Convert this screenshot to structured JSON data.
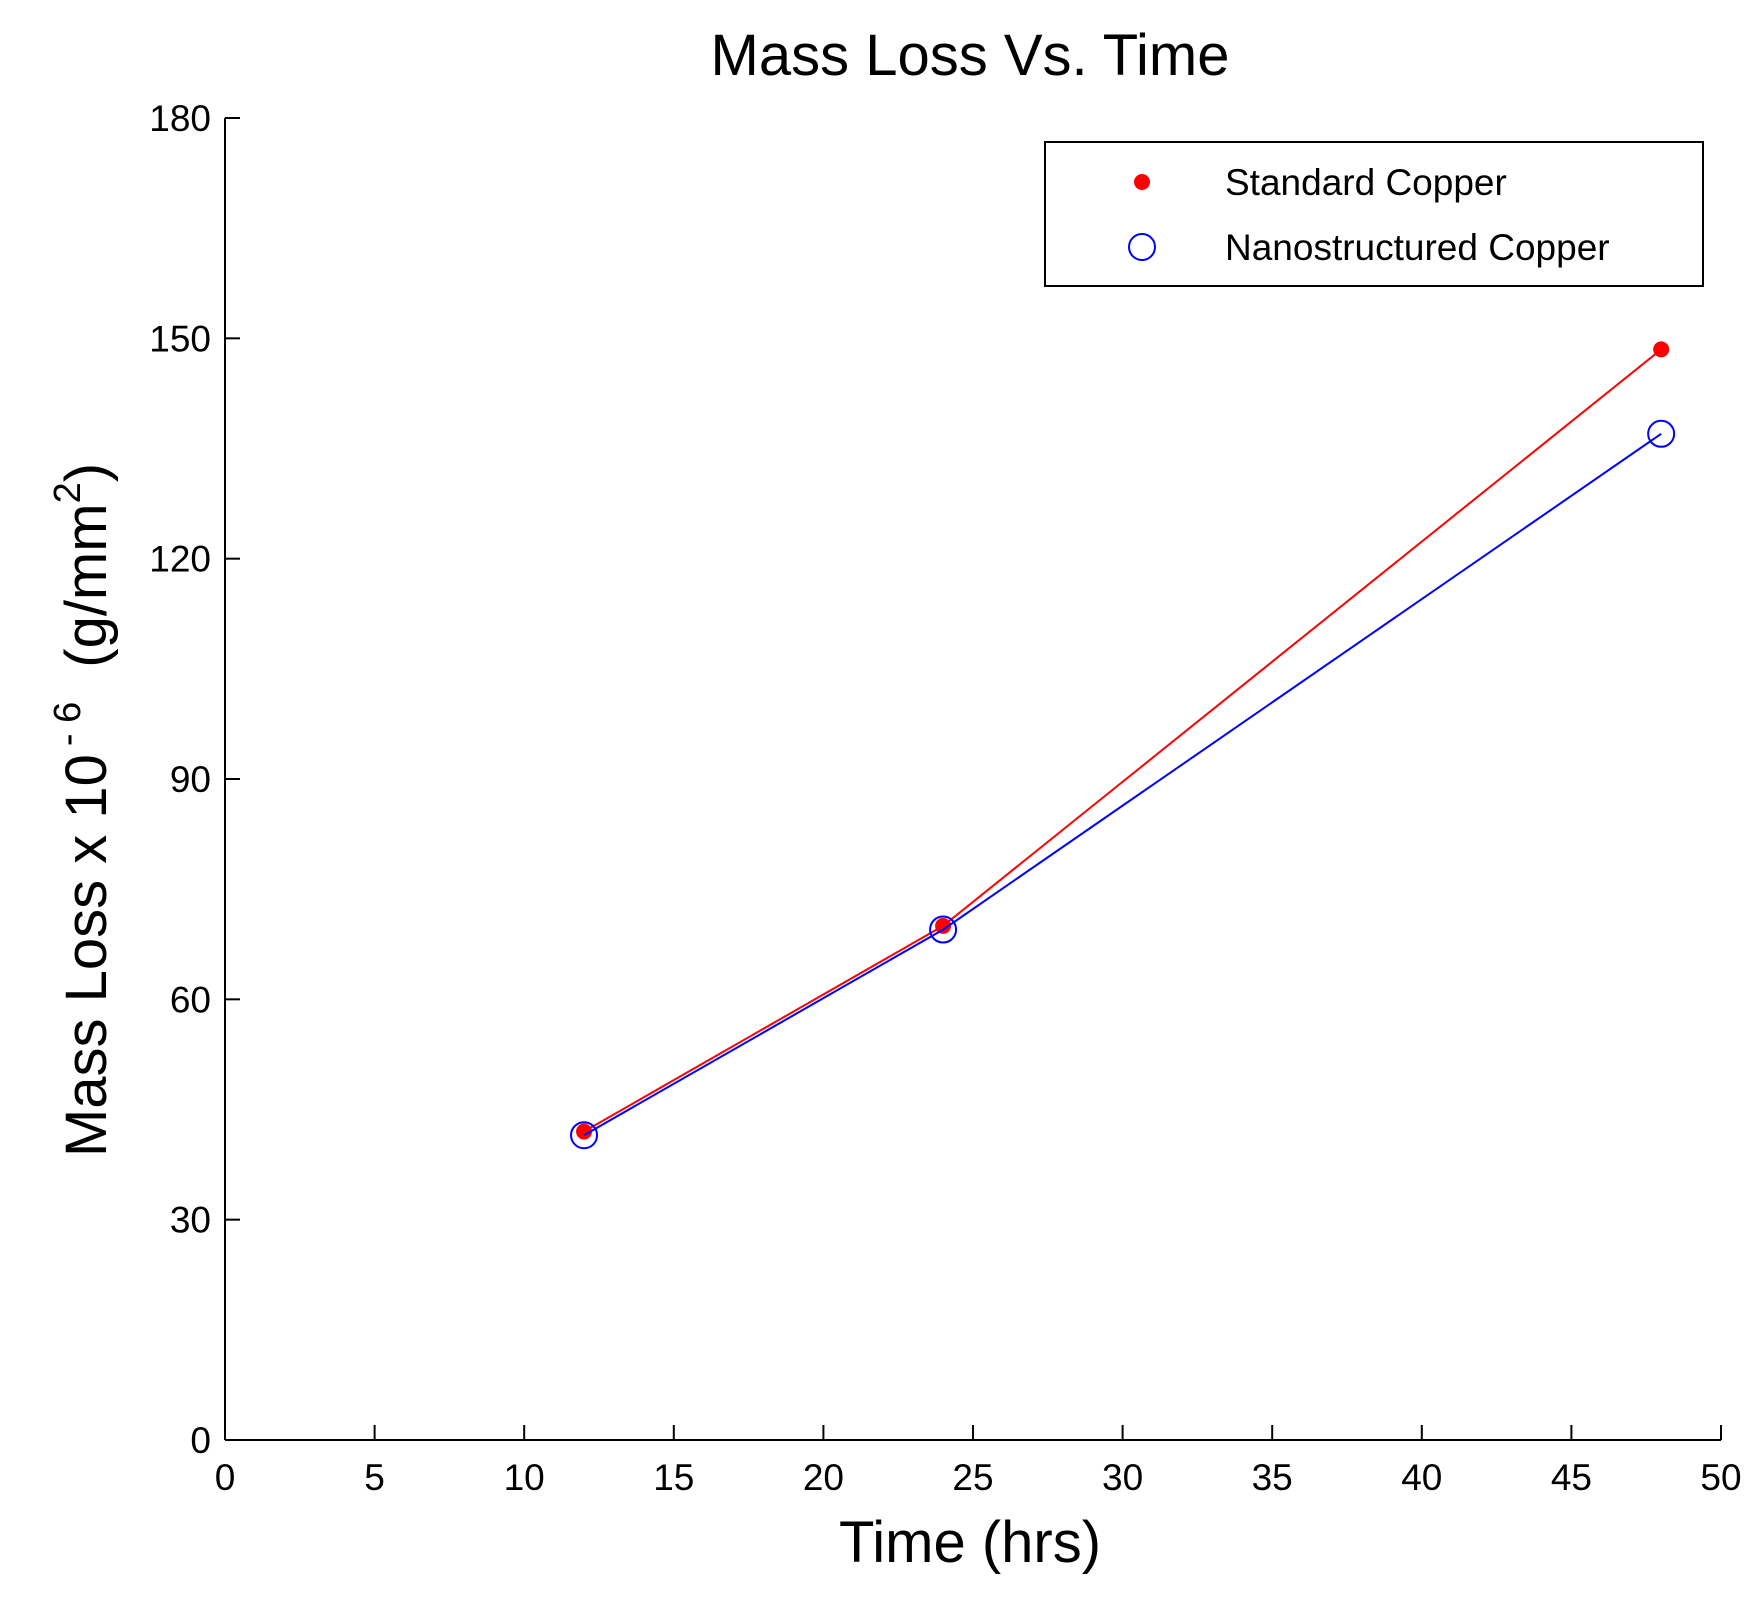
{
  "chart_data": {
    "type": "line",
    "title": "Mass Loss Vs. Time",
    "xlabel": "Time (hrs)",
    "ylabel": {
      "main": "Mass Loss x 10",
      "exponent": "- 6",
      "unit_open": "(g/mm",
      "unit_exp": "2",
      "unit_close": ")"
    },
    "xlim": [
      0,
      50
    ],
    "ylim": [
      0,
      180
    ],
    "xticks": [
      0,
      5,
      10,
      15,
      20,
      25,
      30,
      35,
      40,
      45,
      50
    ],
    "yticks": [
      0,
      30,
      60,
      90,
      120,
      150,
      180
    ],
    "x": [
      12,
      24,
      48
    ],
    "grid": false,
    "legend_position": "top-right",
    "series": [
      {
        "name": "Standard Copper",
        "values": [
          42,
          70,
          148.5
        ],
        "color": "#ff0000",
        "marker": "filled-dot"
      },
      {
        "name": "Nanostructured Copper",
        "values": [
          41.5,
          69.5,
          137
        ],
        "color": "#0000ff",
        "marker": "open-circle"
      }
    ]
  }
}
